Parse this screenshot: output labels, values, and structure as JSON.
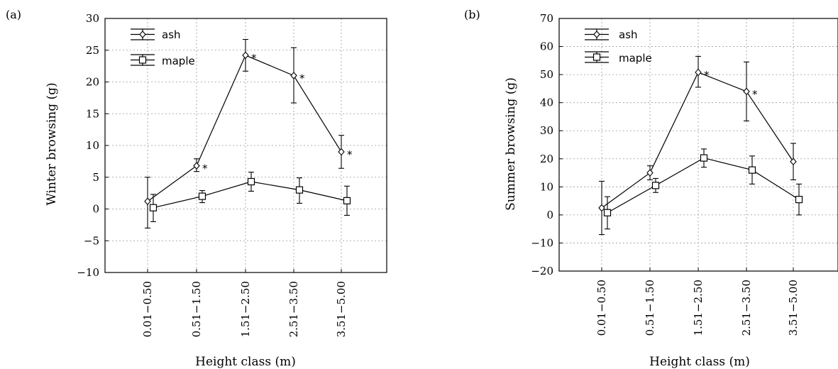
{
  "chart_data": [
    {
      "panel": "(a)",
      "type": "line",
      "xlabel": "Height class (m)",
      "ylabel": "Winter browsing (g)",
      "ylim": [
        -10,
        30
      ],
      "yticks": [
        "30",
        "25",
        "20",
        "15",
        "10",
        "5",
        "0",
        "−5",
        "−10"
      ],
      "categories": [
        "0.01−0.50",
        "0.51−1.50",
        "1.51−2.50",
        "2.51−3.50",
        "3.51−5.00"
      ],
      "grid": true,
      "legend": "top-left",
      "series": [
        {
          "name": "ash",
          "marker": "diamond",
          "values": [
            1.2,
            6.8,
            24.2,
            21.0,
            9.0
          ],
          "err_low": [
            -3.0,
            5.9,
            21.7,
            16.7,
            6.4
          ],
          "err_high": [
            5.0,
            7.9,
            26.7,
            25.4,
            11.6
          ],
          "significant": [
            false,
            true,
            true,
            true,
            true
          ]
        },
        {
          "name": "maple",
          "marker": "square",
          "values": [
            0.2,
            2.0,
            4.3,
            3.0,
            1.3
          ],
          "err_low": [
            -2.0,
            1.0,
            2.8,
            0.9,
            -1.0
          ],
          "err_high": [
            2.3,
            2.9,
            5.8,
            4.9,
            3.6
          ]
        }
      ],
      "significance_mark": "*"
    },
    {
      "panel": "(b)",
      "type": "line",
      "xlabel": "Height class (m)",
      "ylabel": "Summer browsing (g)",
      "ylim": [
        -20,
        70
      ],
      "yticks": [
        "70",
        "60",
        "50",
        "40",
        "30",
        "20",
        "10",
        "0",
        "−10",
        "−20"
      ],
      "categories": [
        "0.01−0.50",
        "0.51−1.50",
        "1.51−2.50",
        "2.51−3.50",
        "3.51−5.00"
      ],
      "grid": true,
      "legend": "top-left",
      "series": [
        {
          "name": "ash",
          "marker": "diamond",
          "values": [
            2.5,
            15.0,
            50.8,
            44.0,
            19.0
          ],
          "err_low": [
            -7.0,
            12.5,
            45.5,
            33.5,
            12.5
          ],
          "err_high": [
            12.0,
            17.5,
            56.5,
            54.5,
            25.5
          ],
          "significant": [
            false,
            false,
            true,
            true,
            false
          ]
        },
        {
          "name": "maple",
          "marker": "square",
          "values": [
            0.8,
            10.5,
            20.3,
            16.0,
            5.5
          ],
          "err_low": [
            -5.0,
            8.0,
            17.0,
            11.0,
            0.0
          ],
          "err_high": [
            6.5,
            13.0,
            23.5,
            21.0,
            11.0
          ]
        }
      ],
      "significance_mark": "*"
    }
  ]
}
